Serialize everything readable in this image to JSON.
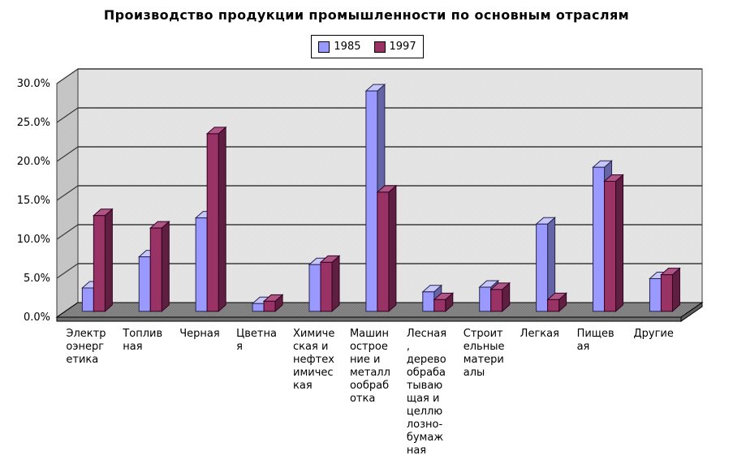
{
  "chart_data": {
    "type": "bar",
    "style": "3d-clustered-bar",
    "title": "Производство продукции промышленности по основным отраслям",
    "categories": [
      "Электроэнергетика",
      "Топливная",
      "Черная",
      "Цветная",
      "Химическая и нефтехимическая",
      "Машиностроение и металлообработка",
      "Лесная, деревообрабатывающая и целлюлозно-бумажная",
      "Строительные материалы",
      "Легкая",
      "Пищевая",
      "Другие"
    ],
    "category_label_lines": [
      [
        "Электр",
        "оэнерг",
        "етика"
      ],
      [
        "Топлив",
        "ная"
      ],
      [
        "Черная"
      ],
      [
        "Цветна",
        "я"
      ],
      [
        "Химиче",
        "ская и",
        "нефтех",
        "имичес",
        "кая"
      ],
      [
        "Машин",
        "острое",
        "ние и",
        "металл",
        "ообраб",
        "отка"
      ],
      [
        "Лесная",
        ",",
        "дерево",
        "обраба",
        "тываю",
        "щая и",
        "целлю",
        "лозно-",
        "бумаж",
        "ная"
      ],
      [
        "Строит",
        "ельные",
        "матери",
        "алы"
      ],
      [
        "Легкая"
      ],
      [
        "Пищев",
        "ая"
      ],
      [
        "Другие"
      ]
    ],
    "series": [
      {
        "name": "1985",
        "values": [
          3.0,
          7.0,
          12.0,
          1.0,
          6.0,
          28.3,
          2.5,
          3.1,
          11.2,
          18.5,
          4.2
        ],
        "color": "#9999FF",
        "color_top": "#C6C6FA",
        "color_side": "#6464A6",
        "color_outline": "#26264D"
      },
      {
        "name": "1997",
        "values": [
          12.3,
          10.7,
          22.8,
          1.3,
          6.3,
          15.3,
          1.5,
          2.8,
          1.5,
          16.7,
          4.7
        ],
        "color": "#993366",
        "color_top": "#AE5585",
        "color_side": "#5F1F40",
        "color_outline": "#330022"
      }
    ],
    "y_axis": {
      "min": 0,
      "max": 30,
      "step": 5,
      "tick_labels": [
        "0.0%",
        "5.0%",
        "10.0%",
        "15.0%",
        "20.0%",
        "25.0%",
        "30.0%"
      ]
    },
    "grid": true,
    "legend_position": "top",
    "colors": {
      "back_wall": "#E6E6E6",
      "left_wall": "#C6C6C6",
      "floor": "#868686",
      "gridline": "#3A3A3A"
    }
  }
}
